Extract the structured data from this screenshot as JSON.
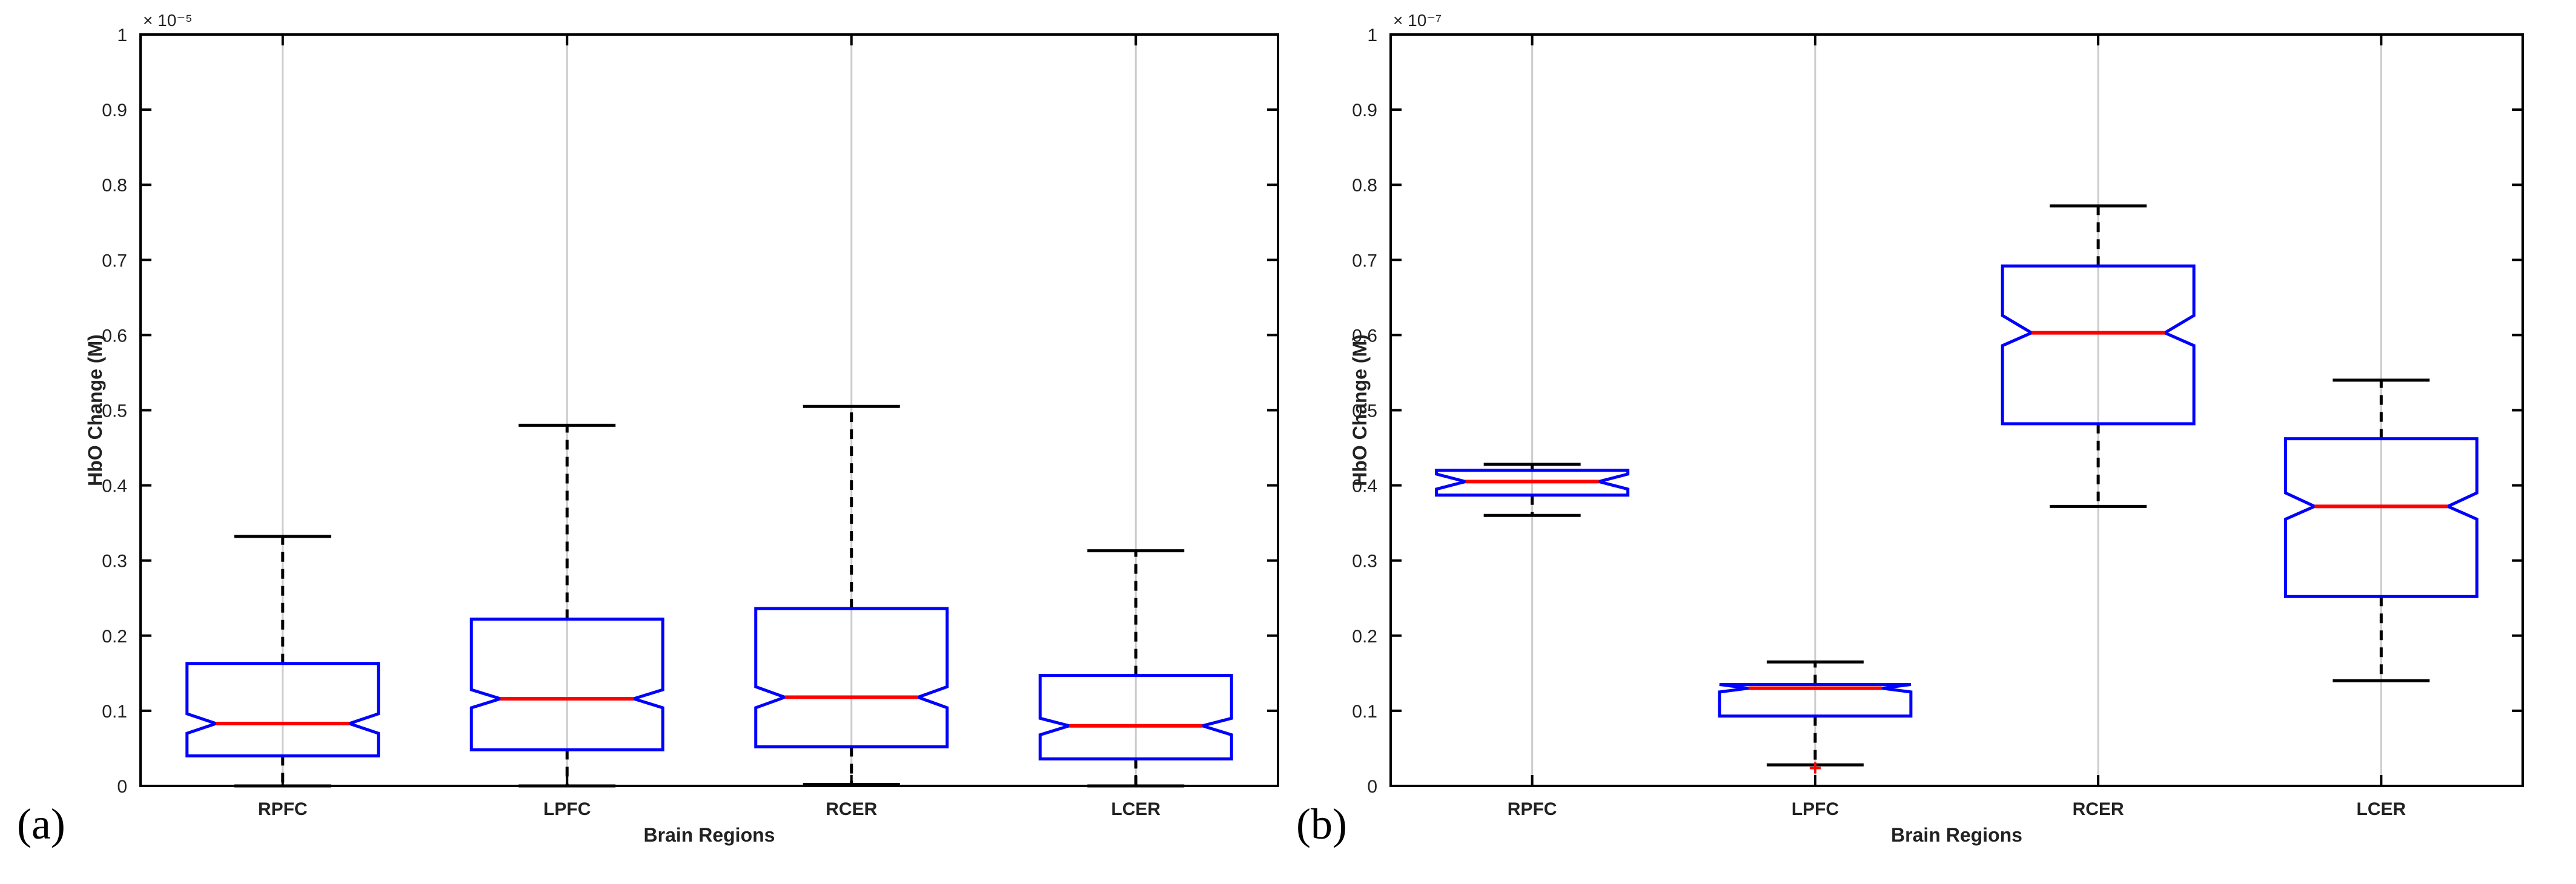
{
  "panels": [
    {
      "label": "(a)"
    },
    {
      "label": "(b)"
    }
  ],
  "chart_data": [
    {
      "type": "box",
      "xlabel": "Brain Regions",
      "ylabel": "HbO Change (M)",
      "ylim": [
        0,
        1
      ],
      "exponent_label": "× 10⁻⁵",
      "y_multiplier": "1e-5",
      "yticks": [
        "0",
        "0.1",
        "0.2",
        "0.3",
        "0.4",
        "0.5",
        "0.6",
        "0.7",
        "0.8",
        "0.9",
        "1"
      ],
      "categories": [
        "RPFC",
        "LPFC",
        "RCER",
        "LCER"
      ],
      "notched": true,
      "vertical_grid": true,
      "box_color": "#0000ff",
      "median_color": "#ff0000",
      "whisker_color": "#000000",
      "grid_color": "#cccccc",
      "boxes": [
        {
          "whisker_low": 0.0,
          "q1": 0.04,
          "median": 0.083,
          "q3": 0.163,
          "whisker_high": 0.332,
          "notch_low": 0.07,
          "notch_high": 0.096,
          "outliers": []
        },
        {
          "whisker_low": 0.0,
          "q1": 0.048,
          "median": 0.116,
          "q3": 0.222,
          "whisker_high": 0.48,
          "notch_low": 0.104,
          "notch_high": 0.128,
          "outliers": []
        },
        {
          "whisker_low": 0.002,
          "q1": 0.052,
          "median": 0.118,
          "q3": 0.236,
          "whisker_high": 0.505,
          "notch_low": 0.104,
          "notch_high": 0.132,
          "outliers": []
        },
        {
          "whisker_low": 0.0,
          "q1": 0.036,
          "median": 0.08,
          "q3": 0.147,
          "whisker_high": 0.313,
          "notch_low": 0.068,
          "notch_high": 0.09,
          "outliers": []
        }
      ]
    },
    {
      "type": "box",
      "xlabel": "Brain Regions",
      "ylabel": "HbO Change (M)",
      "ylim": [
        0,
        1
      ],
      "exponent_label": "× 10⁻⁷",
      "y_multiplier": "1e-7",
      "yticks": [
        "0",
        "0.1",
        "0.2",
        "0.3",
        "0.4",
        "0.5",
        "0.6",
        "0.7",
        "0.8",
        "0.9",
        "1"
      ],
      "categories": [
        "RPFC",
        "LPFC",
        "RCER",
        "LCER"
      ],
      "notched": true,
      "vertical_grid": true,
      "box_color": "#0000ff",
      "median_color": "#ff0000",
      "whisker_color": "#000000",
      "grid_color": "#cccccc",
      "boxes": [
        {
          "whisker_low": 0.36,
          "q1": 0.387,
          "median": 0.405,
          "q3": 0.42,
          "whisker_high": 0.428,
          "notch_low": 0.395,
          "notch_high": 0.415,
          "outliers": []
        },
        {
          "whisker_low": 0.028,
          "q1": 0.093,
          "median": 0.13,
          "q3": 0.135,
          "whisker_high": 0.165,
          "notch_low": 0.125,
          "notch_high": 0.135,
          "outliers": [
            0.022
          ]
        },
        {
          "whisker_low": 0.372,
          "q1": 0.482,
          "median": 0.603,
          "q3": 0.692,
          "whisker_high": 0.772,
          "notch_low": 0.586,
          "notch_high": 0.626,
          "outliers": []
        },
        {
          "whisker_low": 0.14,
          "q1": 0.252,
          "median": 0.372,
          "q3": 0.462,
          "whisker_high": 0.54,
          "notch_low": 0.355,
          "notch_high": 0.39,
          "outliers": []
        }
      ]
    }
  ]
}
